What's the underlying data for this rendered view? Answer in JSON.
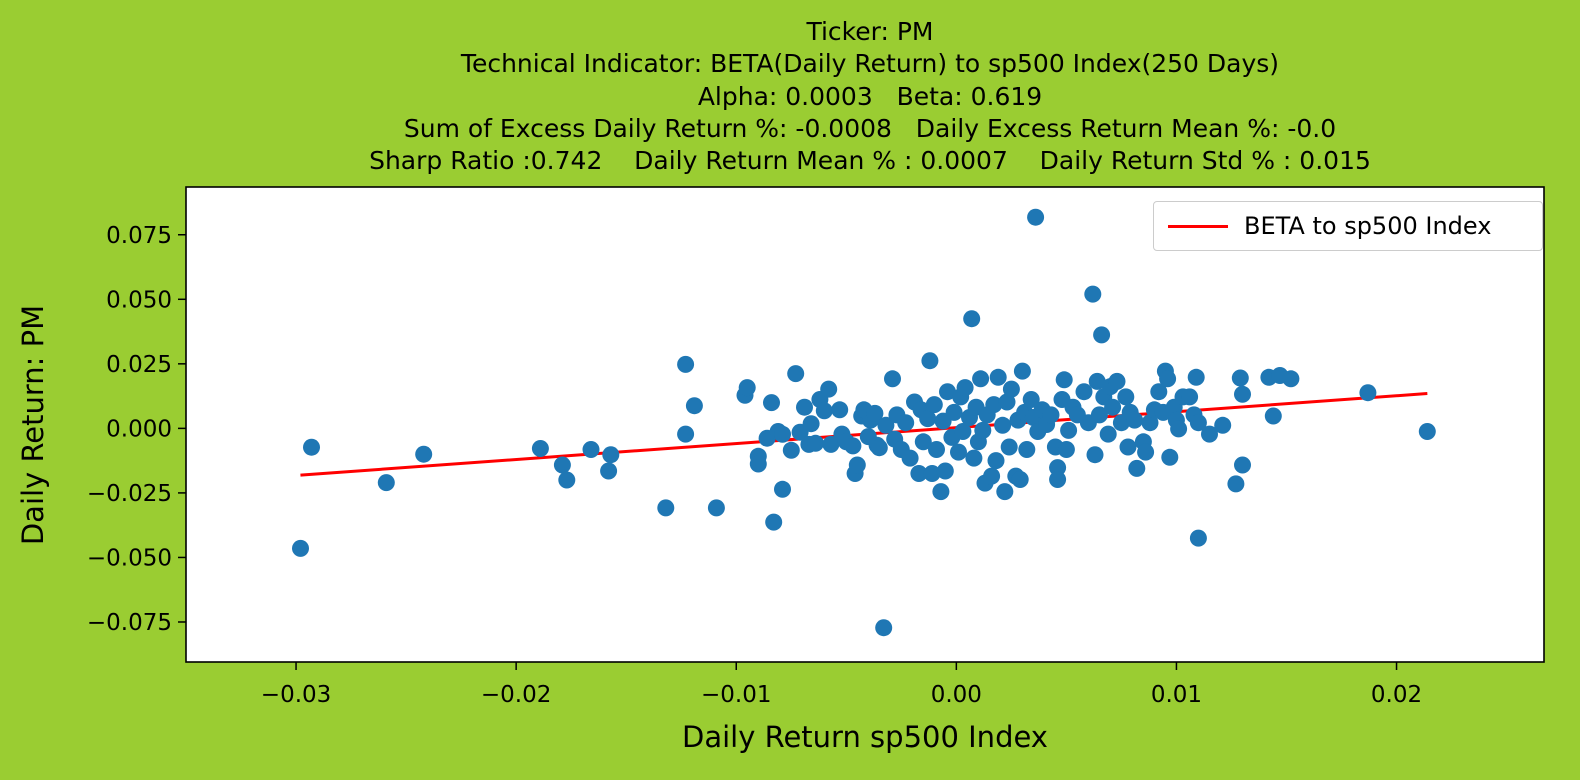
{
  "title_lines": [
    "Ticker: PM",
    "Technical Indicator: BETA(Daily Return) to sp500 Index(250 Days)",
    "Alpha: 0.0003   Beta: 0.619",
    "Sum of Excess Daily Return %: -0.0008   Daily Excess Return Mean %: -0.0",
    "Sharp Ratio :0.742    Daily Return Mean % : 0.0007    Daily Return Std % : 0.015"
  ],
  "chart_data": {
    "type": "scatter",
    "xlabel": "Daily Return sp500 Index",
    "ylabel": "Daily Return: PM",
    "xlim": [
      -0.035,
      0.0267
    ],
    "ylim": [
      -0.0905,
      0.0935
    ],
    "xticks": [
      {
        "value": -0.03,
        "label": "−0.03"
      },
      {
        "value": -0.02,
        "label": "−0.02"
      },
      {
        "value": -0.01,
        "label": "−0.01"
      },
      {
        "value": 0.0,
        "label": "0.00"
      },
      {
        "value": 0.01,
        "label": "0.01"
      },
      {
        "value": 0.02,
        "label": "0.02"
      }
    ],
    "yticks": [
      {
        "value": -0.075,
        "label": "−0.075"
      },
      {
        "value": -0.05,
        "label": "−0.050"
      },
      {
        "value": -0.025,
        "label": "−0.025"
      },
      {
        "value": 0.0,
        "label": "0.000"
      },
      {
        "value": 0.025,
        "label": "0.025"
      },
      {
        "value": 0.05,
        "label": "0.050"
      },
      {
        "value": 0.075,
        "label": "0.075"
      }
    ],
    "grid": false,
    "legend_position": "top-right",
    "colors": {
      "points": "#1f77b4",
      "fit_line": "#ff0000",
      "background": "#9acd32",
      "plot_area": "#ffffff"
    },
    "series": [
      {
        "type": "scatter",
        "points": [
          [
            -0.0298,
            -0.0465
          ],
          [
            -0.0293,
            -0.0073
          ],
          [
            -0.0259,
            -0.021
          ],
          [
            -0.0242,
            -0.01
          ],
          [
            -0.0189,
            -0.0078
          ],
          [
            -0.0179,
            -0.0142
          ],
          [
            -0.0177,
            -0.02
          ],
          [
            -0.0166,
            -0.0082
          ],
          [
            -0.0157,
            -0.0102
          ],
          [
            -0.0158,
            -0.0165
          ],
          [
            -0.0132,
            -0.0308
          ],
          [
            -0.0123,
            0.0248
          ],
          [
            -0.0123,
            -0.0022
          ],
          [
            -0.0119,
            0.0088
          ],
          [
            -0.0109,
            -0.0308
          ],
          [
            -0.0096,
            0.0128
          ],
          [
            -0.0095,
            0.0158
          ],
          [
            -0.009,
            -0.0108
          ],
          [
            -0.009,
            -0.0138
          ],
          [
            -0.0086,
            -0.0038
          ],
          [
            -0.0084,
            0.01
          ],
          [
            -0.0083,
            -0.0363
          ],
          [
            -0.0081,
            -0.0012
          ],
          [
            -0.0079,
            -0.0023
          ],
          [
            -0.0079,
            -0.0236
          ],
          [
            -0.0075,
            -0.0085
          ],
          [
            -0.0073,
            0.0212
          ],
          [
            -0.0071,
            -0.0015
          ],
          [
            -0.0069,
            0.0082
          ],
          [
            -0.0067,
            -0.0062
          ],
          [
            -0.0066,
            0.0018
          ],
          [
            -0.0064,
            -0.0058
          ],
          [
            -0.0062,
            0.0112
          ],
          [
            -0.006,
            0.0068
          ],
          [
            -0.0058,
            0.0152
          ],
          [
            -0.0057,
            -0.0062
          ],
          [
            -0.0053,
            0.0072
          ],
          [
            -0.0052,
            -0.0022
          ],
          [
            -0.005,
            -0.0052
          ],
          [
            -0.0047,
            -0.0068
          ],
          [
            -0.0046,
            -0.0175
          ],
          [
            -0.0045,
            -0.0142
          ],
          [
            -0.0043,
            0.0048
          ],
          [
            -0.0042,
            0.0072
          ],
          [
            -0.004,
            -0.0032
          ],
          [
            -0.0039,
            0.0032
          ],
          [
            -0.0037,
            0.0058
          ],
          [
            -0.0036,
            -0.0065
          ],
          [
            -0.0035,
            -0.0075
          ],
          [
            -0.0033,
            -0.0772
          ],
          [
            -0.0032,
            0.0012
          ],
          [
            -0.0029,
            0.0192
          ],
          [
            -0.0028,
            -0.0042
          ],
          [
            -0.0027,
            0.0052
          ],
          [
            -0.0025,
            -0.0082
          ],
          [
            -0.0023,
            0.0022
          ],
          [
            -0.0021,
            -0.0115
          ],
          [
            -0.0019,
            0.0102
          ],
          [
            -0.0017,
            -0.0175
          ],
          [
            -0.0016,
            0.0072
          ],
          [
            -0.0015,
            -0.0052
          ],
          [
            -0.0013,
            0.0038
          ],
          [
            -0.0012,
            0.0262
          ],
          [
            -0.0011,
            -0.0175
          ],
          [
            -0.001,
            0.0092
          ],
          [
            -0.0009,
            -0.0082
          ],
          [
            -0.0007,
            -0.0245
          ],
          [
            -0.0006,
            0.0028
          ],
          [
            -0.0005,
            -0.0165
          ],
          [
            -0.0004,
            0.0142
          ],
          [
            -0.0002,
            -0.0035
          ],
          [
            -0.0001,
            0.0062
          ],
          [
            0.0001,
            -0.0092
          ],
          [
            0.0002,
            0.0122
          ],
          [
            0.0003,
            -0.0012
          ],
          [
            0.0004,
            0.0158
          ],
          [
            0.0006,
            0.0042
          ],
          [
            0.0007,
            0.0425
          ],
          [
            0.0008,
            -0.0115
          ],
          [
            0.0009,
            0.0082
          ],
          [
            0.001,
            -0.0052
          ],
          [
            0.0011,
            0.0192
          ],
          [
            0.0012,
            -0.0008
          ],
          [
            0.0013,
            -0.0212
          ],
          [
            0.0014,
            0.0052
          ],
          [
            0.0016,
            -0.0185
          ],
          [
            0.0017,
            0.0092
          ],
          [
            0.0018,
            -0.0125
          ],
          [
            0.0019,
            0.0198
          ],
          [
            0.0021,
            0.0012
          ],
          [
            0.0022,
            -0.0245
          ],
          [
            0.0023,
            0.0102
          ],
          [
            0.0024,
            -0.0072
          ],
          [
            0.0025,
            0.0152
          ],
          [
            0.0027,
            -0.0185
          ],
          [
            0.0028,
            0.0032
          ],
          [
            0.0029,
            -0.0198
          ],
          [
            0.003,
            0.0222
          ],
          [
            0.0031,
            0.0062
          ],
          [
            0.0032,
            -0.0082
          ],
          [
            0.0034,
            0.0112
          ],
          [
            0.0035,
            0.0042
          ],
          [
            0.0036,
            0.0818
          ],
          [
            0.0037,
            -0.0012
          ],
          [
            0.0039,
            0.0072
          ],
          [
            0.0041,
            0.0015
          ],
          [
            0.0043,
            0.0052
          ],
          [
            0.0045,
            -0.0072
          ],
          [
            0.0046,
            -0.0152
          ],
          [
            0.0046,
            -0.0198
          ],
          [
            0.0048,
            0.0112
          ],
          [
            0.0049,
            0.0188
          ],
          [
            0.005,
            -0.0082
          ],
          [
            0.0051,
            -0.0008
          ],
          [
            0.0053,
            0.0082
          ],
          [
            0.0055,
            0.0052
          ],
          [
            0.0058,
            0.0142
          ],
          [
            0.006,
            0.0022
          ],
          [
            0.0062,
            0.052
          ],
          [
            0.0063,
            -0.0102
          ],
          [
            0.0064,
            0.0182
          ],
          [
            0.0065,
            0.0052
          ],
          [
            0.0066,
            0.0362
          ],
          [
            0.0067,
            0.0122
          ],
          [
            0.0069,
            -0.0022
          ],
          [
            0.007,
            0.0162
          ],
          [
            0.0071,
            0.0082
          ],
          [
            0.0073,
            0.0182
          ],
          [
            0.0075,
            0.0022
          ],
          [
            0.0077,
            0.0122
          ],
          [
            0.0078,
            -0.0072
          ],
          [
            0.0079,
            0.0062
          ],
          [
            0.0081,
            0.0032
          ],
          [
            0.0082,
            -0.0155
          ],
          [
            0.0085,
            -0.0052
          ],
          [
            0.0086,
            -0.0092
          ],
          [
            0.0088,
            0.0022
          ],
          [
            0.009,
            0.0072
          ],
          [
            0.0092,
            0.0142
          ],
          [
            0.0094,
            0.0062
          ],
          [
            0.0095,
            0.0222
          ],
          [
            0.0096,
            0.0192
          ],
          [
            0.0097,
            -0.0112
          ],
          [
            0.0099,
            0.0082
          ],
          [
            0.01,
            0.0032
          ],
          [
            0.0101,
            -0.0002
          ],
          [
            0.0103,
            0.0122
          ],
          [
            0.0106,
            0.0122
          ],
          [
            0.0108,
            0.0052
          ],
          [
            0.0109,
            0.0198
          ],
          [
            0.011,
            0.0022
          ],
          [
            0.011,
            -0.0425
          ],
          [
            0.0115,
            -0.0022
          ],
          [
            0.0121,
            0.0012
          ],
          [
            0.0127,
            -0.0215
          ],
          [
            0.0129,
            0.0195
          ],
          [
            0.013,
            0.0132
          ],
          [
            0.013,
            -0.0142
          ],
          [
            0.0142,
            0.0198
          ],
          [
            0.0144,
            0.0048
          ],
          [
            0.0147,
            0.0205
          ],
          [
            0.0152,
            0.0192
          ],
          [
            0.0187,
            0.0138
          ],
          [
            0.0214,
            -0.0012
          ]
        ]
      },
      {
        "type": "line",
        "name": "BETA to sp500 Index",
        "x": [
          -0.0298,
          0.0214
        ],
        "y": [
          -0.0181,
          0.0135
        ]
      }
    ]
  }
}
